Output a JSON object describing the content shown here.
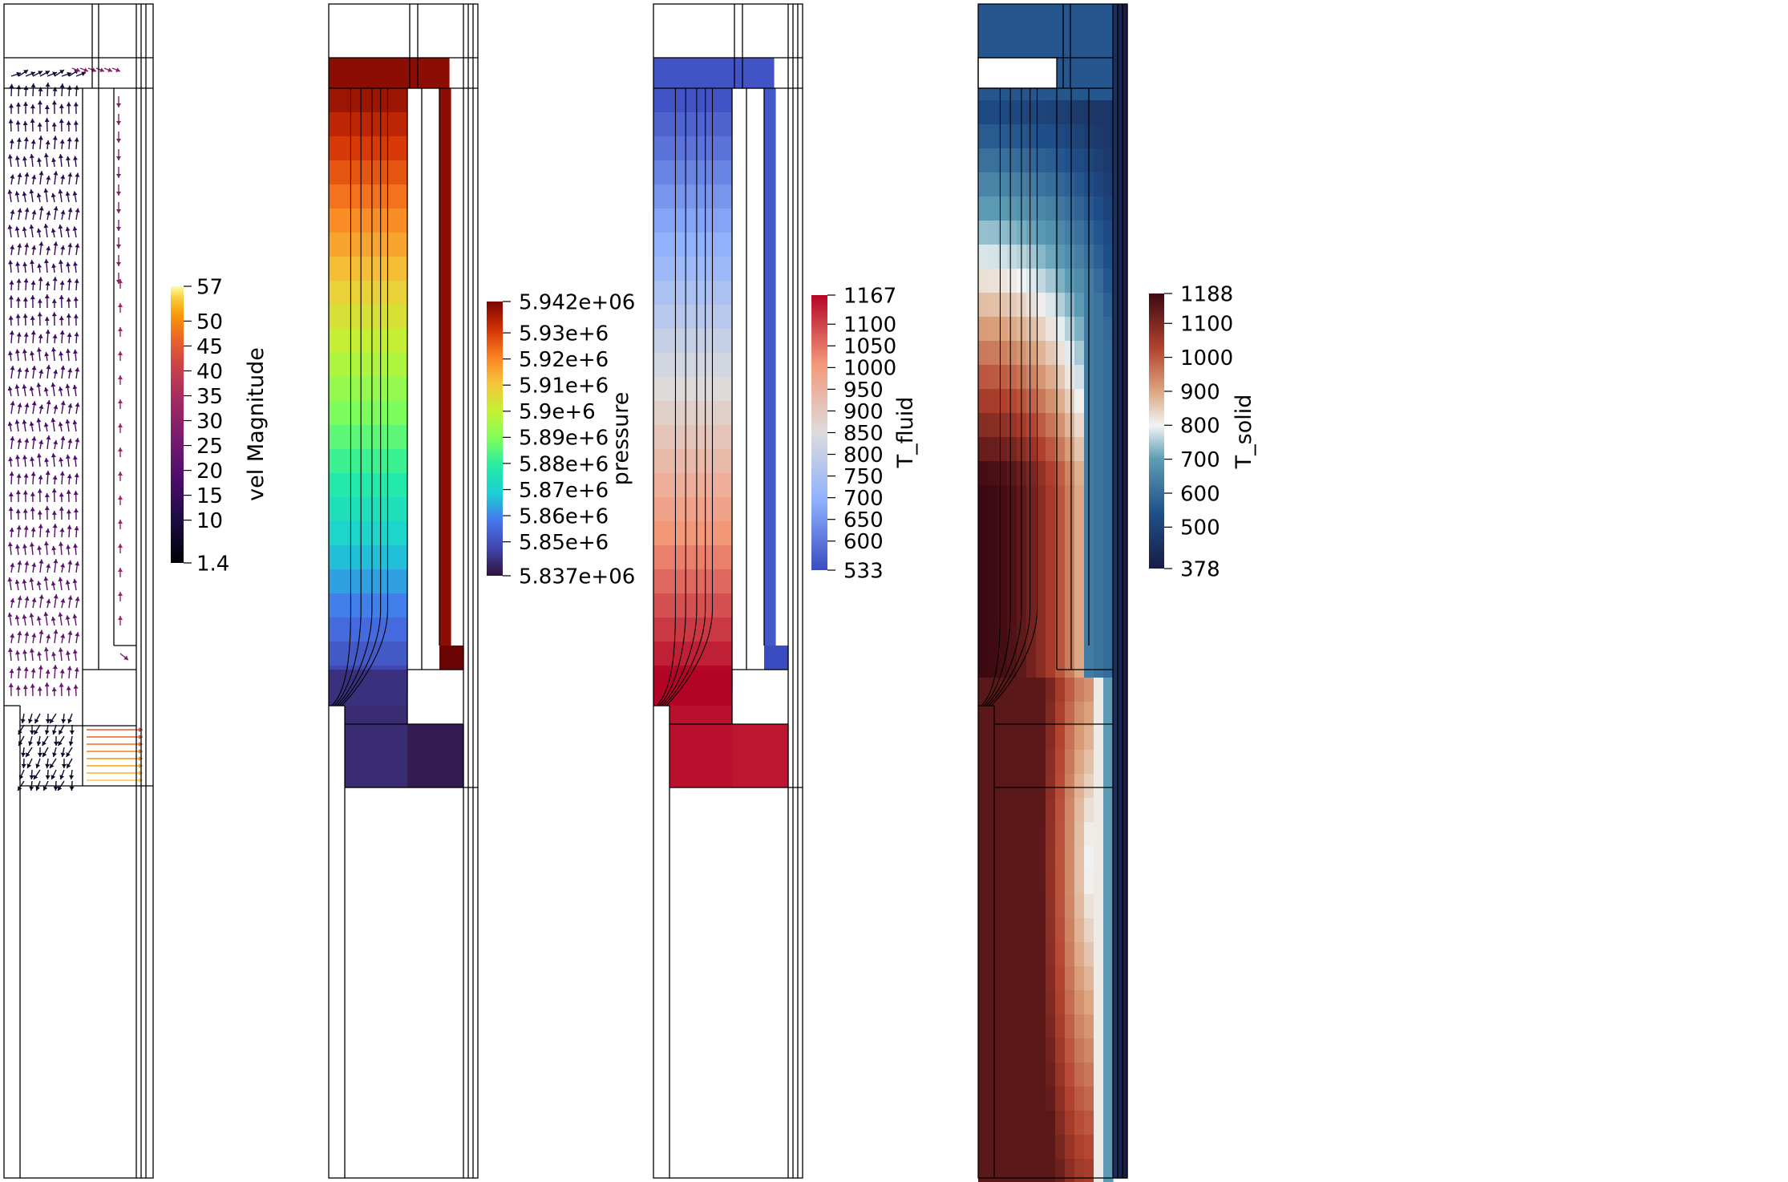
{
  "panels": [
    {
      "id": "velocity",
      "field_title": "vel Magnitude",
      "colormap": "inferno",
      "ticks": [
        "57",
        "50",
        "45",
        "40",
        "35",
        "30",
        "25",
        "20",
        "15",
        "10",
        "1.4"
      ],
      "tick_values": [
        57,
        50,
        45,
        40,
        35,
        30,
        25,
        20,
        15,
        10,
        1.4
      ],
      "range": [
        1.4,
        57
      ]
    },
    {
      "id": "pressure",
      "field_title": "pressure",
      "colormap": "turbo",
      "ticks": [
        "5.942e+06",
        "5.93e+6",
        "5.92e+6",
        "5.91e+6",
        "5.9e+6",
        "5.89e+6",
        "5.88e+6",
        "5.87e+6",
        "5.86e+6",
        "5.85e+6",
        "5.837e+06"
      ],
      "tick_values": [
        5942000,
        5930000,
        5920000,
        5910000,
        5900000,
        5890000,
        5880000,
        5870000,
        5860000,
        5850000,
        5837000
      ],
      "range": [
        5837000,
        5942000
      ]
    },
    {
      "id": "t_fluid",
      "field_title": "T_fluid",
      "colormap": "coolwarm",
      "ticks": [
        "1167",
        "1100",
        "1050",
        "1000",
        "950",
        "900",
        "850",
        "800",
        "750",
        "700",
        "650",
        "600",
        "533"
      ],
      "tick_values": [
        1167,
        1100,
        1050,
        1000,
        950,
        900,
        850,
        800,
        750,
        700,
        650,
        600,
        533
      ],
      "range": [
        533,
        1167
      ]
    },
    {
      "id": "t_solid",
      "field_title": "T_solid",
      "colormap": "balance",
      "ticks": [
        "1188",
        "1100",
        "1000",
        "900",
        "800",
        "700",
        "600",
        "500",
        "378"
      ],
      "tick_values": [
        1188,
        1100,
        1000,
        900,
        800,
        700,
        600,
        500,
        378
      ],
      "range": [
        378,
        1188
      ]
    }
  ]
}
